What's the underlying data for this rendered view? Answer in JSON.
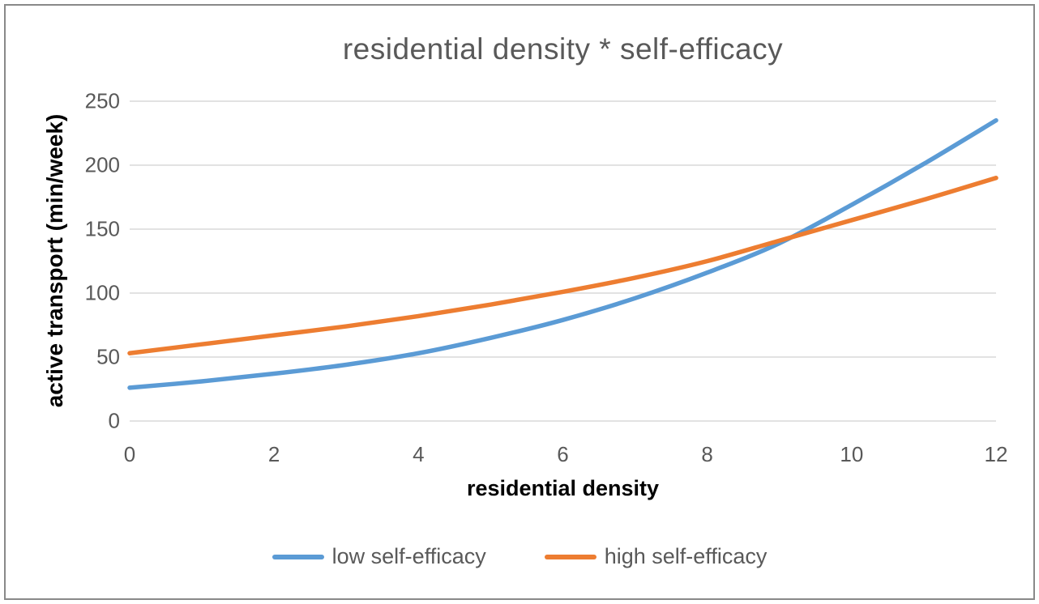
{
  "chart_data": {
    "type": "line",
    "title": "residential density * self-efficacy",
    "xlabel": "residential density",
    "ylabel": "active transport (min/week)",
    "x": [
      0,
      1,
      2,
      3,
      4,
      5,
      6,
      7,
      8,
      9,
      10,
      11,
      12
    ],
    "series": [
      {
        "name": "low self-efficacy",
        "color": "#5B9BD5",
        "values": [
          26,
          31,
          37,
          44,
          53,
          65,
          79,
          96,
          116,
          139,
          169,
          201,
          235
        ]
      },
      {
        "name": "high self-efficacy",
        "color": "#ED7D31",
        "values": [
          53,
          60,
          67,
          74,
          82,
          91,
          101,
          112,
          125,
          141,
          157,
          173,
          190
        ]
      }
    ],
    "xticks": [
      0,
      2,
      4,
      6,
      8,
      10,
      12
    ],
    "yticks": [
      0,
      50,
      100,
      150,
      200,
      250
    ],
    "xlim": [
      0,
      12
    ],
    "ylim": [
      0,
      250
    ],
    "grid": "horizontal",
    "legend_position": "bottom",
    "annotations": [],
    "style": {
      "background": "#FFFFFF",
      "border_color": "#898989",
      "gridline_color": "#D9D9D9",
      "title_color": "#595959",
      "tick_label_color": "#595959",
      "axis_title_color": "#000000",
      "legend_text_color": "#595959",
      "line_width": 5.5
    }
  }
}
